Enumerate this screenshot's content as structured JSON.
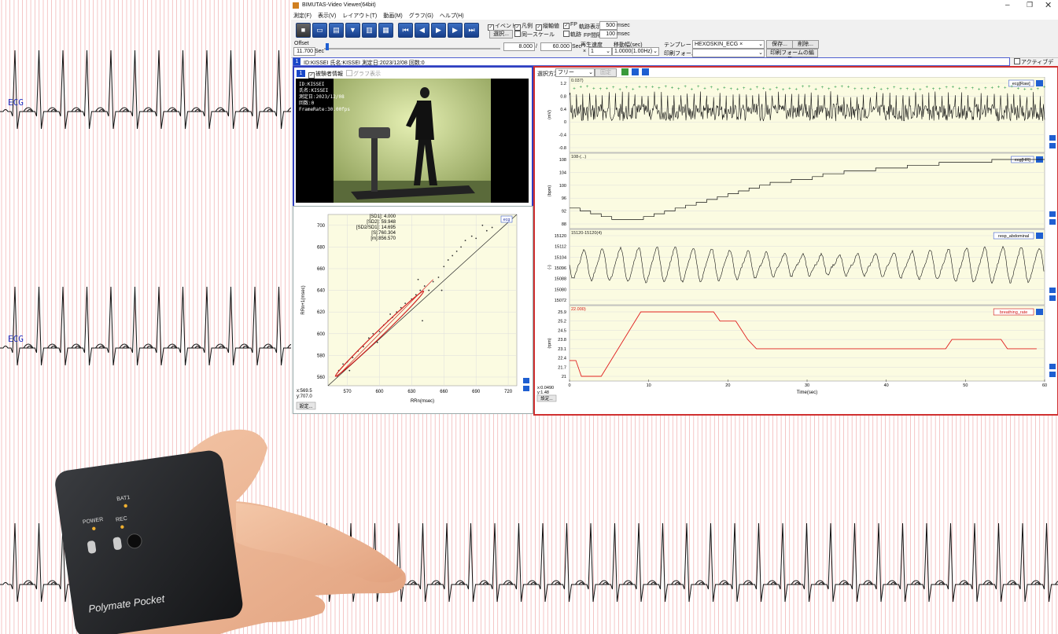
{
  "background": {
    "lead_label": "ECG",
    "grid_color": "#f2b8b8",
    "trace_color": "#111111"
  },
  "app": {
    "title": "BIMUTAS-Video Viewer(64bit)",
    "menu": [
      "測定(F)",
      "表示(V)",
      "レイアウト(T)",
      "動画(M)",
      "グラフ(G)",
      "ヘルプ(H)"
    ],
    "toolbar": {
      "checks": [
        {
          "label": "イベント",
          "checked": true
        },
        {
          "label": "凡例",
          "checked": true
        },
        {
          "label": "縦軸値",
          "checked": true
        },
        {
          "label": "FP",
          "checked": true
        },
        {
          "label": "同一スケール",
          "checked": false
        },
        {
          "label": "軌跡",
          "checked": false
        }
      ],
      "trace_display_label": "軌跡表示",
      "trace_display_value": "500",
      "trace_display_unit": "msec",
      "fp_interval_label": "FP間隔",
      "fp_interval_value": "100",
      "fp_interval_unit": "msec",
      "select_button": "選択...",
      "offset_label": "Offset",
      "offset_value": "11.700",
      "offset_unit": "Sec",
      "time_position": "8.000",
      "time_separator": "/",
      "time_total": "60.000",
      "time_unit": "Sec",
      "playback_speed_label": "再生速度",
      "playback_speed_prefix": "×",
      "playback_speed_value": "1",
      "move_width_label": "移動幅(sec)",
      "move_width_value": "1.0000(1.00Hz)",
      "template_label": "テンプレート",
      "template_value": "HEXOSKIN_ECG ×",
      "print_form_label": "印刷フォーム",
      "save_button": "保存...",
      "delete_button": "削除...",
      "print_form_edit_button": "印刷フォームの編集..."
    },
    "info_bar": {
      "tag": "1",
      "text": "ID:KISSEI 氏名:KISSEI 測定日:2023/12/08 回数:0",
      "active_data_label": "アクティブデータ"
    },
    "video_panel": {
      "tag": "1",
      "subject_info_label": "被験者情報",
      "graph_display_label": "グラフ表示",
      "overlay_lines": [
        "ID:KISSEI",
        "氏名:KISSEI",
        "測定日:2023/12/08",
        "回数:0",
        "FrameRate:30.00fps"
      ]
    },
    "poincare": {
      "badge": "ecg",
      "stats": [
        "[SD1]:   4.000",
        "[SD2]:  59.948",
        "[SD2/SD1]:  14.695",
        "[S]:760.304",
        "[m]:856.570"
      ],
      "x_ticks": [
        "570",
        "600",
        "630",
        "660",
        "690",
        "720"
      ],
      "y_ticks": [
        "700",
        "680",
        "660",
        "640",
        "620",
        "600",
        "580",
        "560"
      ],
      "xlabel": "RRn(msec)",
      "ylabel": "RRn+1(msec)",
      "cursor": [
        "x:569.5",
        "y:707.0"
      ],
      "settings_button": "設定..."
    },
    "waveforms": {
      "selection_label": "選択方法",
      "selection_value": "フリー",
      "fixed_width_label": "固定幅",
      "channels": [
        {
          "name": "ecg[Raw]",
          "unit": "(mV)",
          "ticks": [
            "1.2",
            "0.8",
            "0.4",
            "0",
            "-0.4",
            "-0.8"
          ],
          "cursor_value": "0.037)",
          "name_color": "#000000"
        },
        {
          "name": "ecg[HR]",
          "unit": "(bpm)",
          "ticks": [
            "108",
            "104",
            "100",
            "96",
            "92",
            "88"
          ],
          "cursor_value": "108-(...)",
          "name_color": "#000000"
        },
        {
          "name": "resp_abdominal",
          "unit": "(-)",
          "ticks": [
            "15120",
            "15112",
            "15104",
            "15096",
            "15088",
            "15080",
            "15072"
          ],
          "cursor_value": "15120-15120(4)",
          "name_color": "#000000"
        },
        {
          "name": "breathing_rate",
          "unit": "(rpm)",
          "ticks": [
            "25.9",
            "25.2",
            "24.5",
            "23.8",
            "23.1",
            "22.4",
            "21.7",
            "21"
          ],
          "cursor_value": "22.000)",
          "name_color": "#d01010"
        }
      ],
      "x_ticks": [
        "0",
        "10",
        "20",
        "30",
        "40",
        "50",
        "60"
      ],
      "xlabel": "Time(sec)",
      "cursor": [
        "x:0.0490",
        "y:1.48"
      ],
      "settings_button": "設定..."
    }
  },
  "device": {
    "brand": "Polymate Pocket",
    "labels": [
      "BAT1",
      "POWER",
      "REC"
    ]
  }
}
